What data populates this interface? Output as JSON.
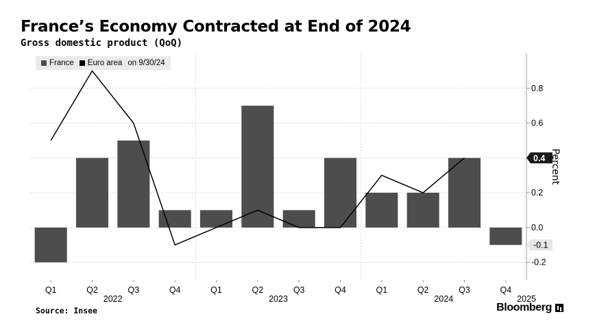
{
  "header": {
    "title": "France’s Economy Contracted at End of 2024",
    "subtitle": "Gross domestic product (QoQ)"
  },
  "legend": {
    "items": [
      {
        "label": "France",
        "color": "#4d4d4d"
      },
      {
        "label": "Euro area",
        "color": "#000000"
      }
    ],
    "note": "on 9/30/24"
  },
  "footer": {
    "source": "Source: Insee",
    "brand": "Bloomberg"
  },
  "chart_data": {
    "type": "bar",
    "categories": [
      "Q1",
      "Q2",
      "Q3",
      "Q4",
      "Q1",
      "Q2",
      "Q3",
      "Q4",
      "Q1",
      "Q2",
      "Q3",
      "Q4"
    ],
    "year_labels": [
      {
        "label": "2022",
        "index": 1.5
      },
      {
        "label": "2023",
        "index": 5.5
      },
      {
        "label": "2024",
        "index": 9.5
      },
      {
        "label": "2025",
        "index": 11.5
      }
    ],
    "series": [
      {
        "name": "France",
        "type": "bar",
        "color": "#4d4d4d",
        "values": [
          -0.2,
          0.4,
          0.5,
          0.1,
          0.1,
          0.7,
          0.1,
          0.4,
          0.2,
          0.2,
          0.4,
          -0.1
        ]
      },
      {
        "name": "Euro area",
        "type": "line",
        "color": "#000000",
        "values": [
          0.5,
          0.9,
          0.6,
          -0.1,
          0.0,
          0.1,
          0.0,
          0.0,
          0.3,
          0.2,
          0.4,
          null
        ]
      }
    ],
    "ylabel": "Percent",
    "ylim": [
      -0.3,
      1.0
    ],
    "yticks": [
      -0.2,
      0.0,
      0.2,
      0.4,
      0.6,
      0.8
    ],
    "ytick_labels": [
      "-0.2",
      "0.0",
      "0.2",
      "0.4",
      "0.6",
      "0.8"
    ],
    "callouts": [
      {
        "label": "0.4",
        "value": 0.4,
        "style": "dark"
      },
      {
        "label": "-0.1",
        "value": -0.1,
        "style": "light"
      }
    ],
    "grid": true,
    "yaxis_position": "right",
    "legend_position": "top-left"
  }
}
